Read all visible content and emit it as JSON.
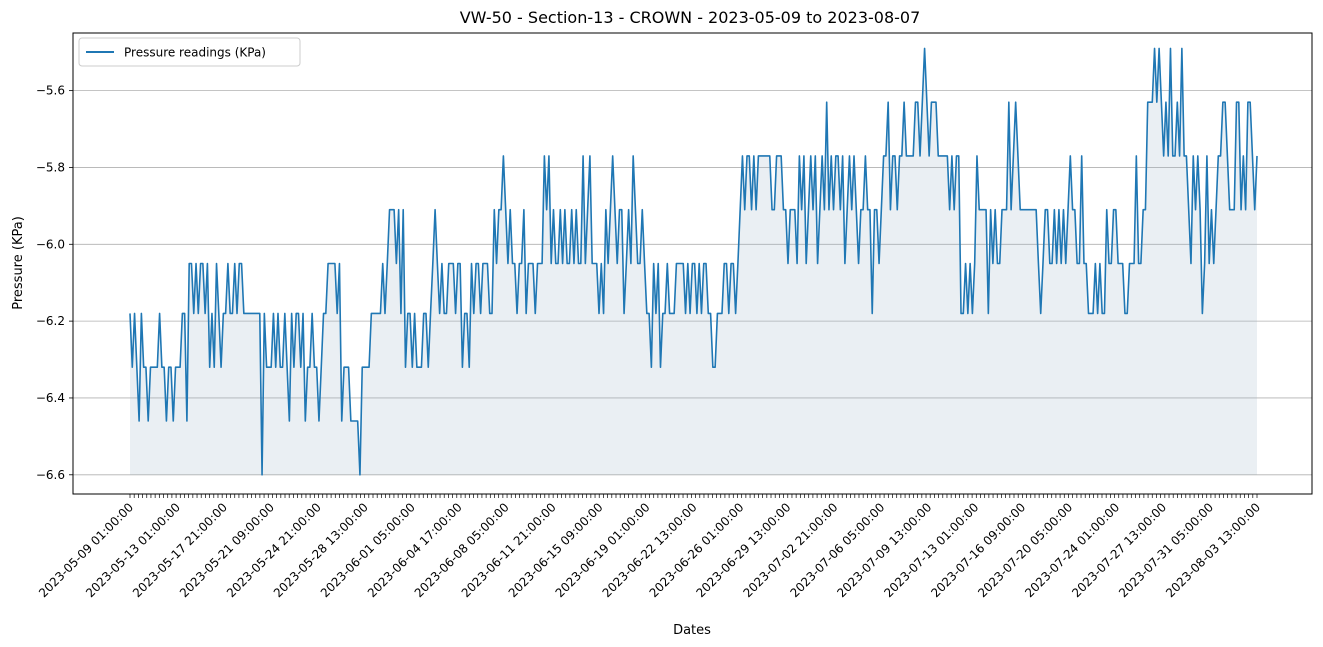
{
  "chart_data": {
    "type": "line",
    "title": "VW-50 - Section-13 - CROWN - 2023-05-09 to 2023-08-07",
    "xlabel": "Dates",
    "ylabel": "Pressure (KPa)",
    "ylim": [
      -6.65,
      -5.45
    ],
    "yticks": [
      -6.6,
      -6.4,
      -6.2,
      -6.0,
      -5.8,
      -5.6
    ],
    "ytick_labels": [
      "−6.6",
      "−6.4",
      "−6.2",
      "−6.0",
      "−5.8",
      "−5.6"
    ],
    "grid": "y",
    "legend": "top-left",
    "fill_baseline": -6.6,
    "colors": {
      "line": "#1f77b4",
      "fill": "#9fb8c8",
      "grid": "#b0b0b0"
    },
    "xtick_labels": [
      "2023-05-09 01:00:00",
      "2023-05-13 01:00:00",
      "2023-05-17 21:00:00",
      "2023-05-21 09:00:00",
      "2023-05-24 21:00:00",
      "2023-05-28 13:00:00",
      "2023-06-01 05:00:00",
      "2023-06-04 17:00:00",
      "2023-06-08 05:00:00",
      "2023-06-11 21:00:00",
      "2023-06-15 09:00:00",
      "2023-06-19 01:00:00",
      "2023-06-22 13:00:00",
      "2023-06-26 01:00:00",
      "2023-06-29 13:00:00",
      "2023-07-02 21:00:00",
      "2023-07-06 05:00:00",
      "2023-07-09 13:00:00",
      "2023-07-13 01:00:00",
      "2023-07-16 09:00:00",
      "2023-07-20 05:00:00",
      "2023-07-24 01:00:00",
      "2023-07-27 13:00:00",
      "2023-07-31 05:00:00",
      "2023-08-03 13:00:00"
    ],
    "series": [
      {
        "name": "Pressure readings (KPa)",
        "values": [
          -6.18,
          -6.32,
          -6.18,
          -6.32,
          -6.46,
          -6.18,
          -6.32,
          -6.32,
          -6.46,
          -6.32,
          -6.32,
          -6.32,
          -6.32,
          -6.18,
          -6.32,
          -6.32,
          -6.46,
          -6.32,
          -6.32,
          -6.46,
          -6.32,
          -6.32,
          -6.32,
          -6.18,
          -6.18,
          -6.46,
          -6.05,
          -6.05,
          -6.18,
          -6.05,
          -6.18,
          -6.05,
          -6.05,
          -6.18,
          -6.05,
          -6.32,
          -6.18,
          -6.32,
          -6.05,
          -6.18,
          -6.32,
          -6.18,
          -6.18,
          -6.05,
          -6.18,
          -6.18,
          -6.05,
          -6.18,
          -6.05,
          -6.05,
          -6.18,
          -6.18,
          -6.18,
          -6.18,
          -6.18,
          -6.18,
          -6.18,
          -6.18,
          -6.6,
          -6.18,
          -6.32,
          -6.32,
          -6.32,
          -6.18,
          -6.32,
          -6.18,
          -6.32,
          -6.32,
          -6.18,
          -6.32,
          -6.46,
          -6.18,
          -6.32,
          -6.18,
          -6.18,
          -6.32,
          -6.18,
          -6.46,
          -6.32,
          -6.32,
          -6.18,
          -6.32,
          -6.32,
          -6.46,
          -6.32,
          -6.18,
          -6.18,
          -6.05,
          -6.05,
          -6.05,
          -6.05,
          -6.18,
          -6.05,
          -6.46,
          -6.32,
          -6.32,
          -6.32,
          -6.46,
          -6.46,
          -6.46,
          -6.46,
          -6.6,
          -6.32,
          -6.32,
          -6.32,
          -6.32,
          -6.18,
          -6.18,
          -6.18,
          -6.18,
          -6.18,
          -6.05,
          -6.18,
          -6.05,
          -5.91,
          -5.91,
          -5.91,
          -6.05,
          -5.91,
          -6.18,
          -5.91,
          -6.32,
          -6.18,
          -6.18,
          -6.32,
          -6.18,
          -6.32,
          -6.32,
          -6.32,
          -6.18,
          -6.18,
          -6.32,
          -6.18,
          -6.05,
          -5.91,
          -6.05,
          -6.18,
          -6.05,
          -6.18,
          -6.18,
          -6.05,
          -6.05,
          -6.05,
          -6.18,
          -6.05,
          -6.05,
          -6.32,
          -6.18,
          -6.18,
          -6.32,
          -6.05,
          -6.18,
          -6.05,
          -6.05,
          -6.18,
          -6.05,
          -6.05,
          -6.05,
          -6.18,
          -6.18,
          -5.91,
          -6.05,
          -5.91,
          -5.91,
          -5.77,
          -5.91,
          -6.05,
          -5.91,
          -6.05,
          -6.05,
          -6.18,
          -6.05,
          -6.05,
          -5.91,
          -6.18,
          -6.05,
          -6.05,
          -6.05,
          -6.18,
          -6.05,
          -6.05,
          -6.05,
          -5.77,
          -5.91,
          -5.77,
          -6.05,
          -5.91,
          -6.05,
          -6.05,
          -5.91,
          -6.05,
          -5.91,
          -6.05,
          -6.05,
          -5.91,
          -6.05,
          -5.91,
          -6.05,
          -6.05,
          -5.77,
          -6.05,
          -5.91,
          -5.77,
          -6.05,
          -6.05,
          -6.05,
          -6.18,
          -6.05,
          -6.18,
          -5.91,
          -6.05,
          -5.91,
          -5.77,
          -5.91,
          -6.05,
          -5.91,
          -5.91,
          -6.18,
          -6.05,
          -5.91,
          -6.05,
          -5.77,
          -5.91,
          -6.05,
          -6.05,
          -5.91,
          -6.05,
          -6.18,
          -6.18,
          -6.32,
          -6.05,
          -6.18,
          -6.05,
          -6.32,
          -6.18,
          -6.18,
          -6.05,
          -6.18,
          -6.18,
          -6.18,
          -6.05,
          -6.05,
          -6.05,
          -6.05,
          -6.18,
          -6.05,
          -6.18,
          -6.05,
          -6.05,
          -6.18,
          -6.05,
          -6.18,
          -6.05,
          -6.05,
          -6.18,
          -6.18,
          -6.32,
          -6.32,
          -6.18,
          -6.18,
          -6.18,
          -6.05,
          -6.05,
          -6.18,
          -6.05,
          -6.05,
          -6.18,
          -6.05,
          -5.91,
          -5.77,
          -5.91,
          -5.77,
          -5.77,
          -5.91,
          -5.77,
          -5.91,
          -5.77,
          -5.77,
          -5.77,
          -5.77,
          -5.77,
          -5.77,
          -5.91,
          -5.91,
          -5.77,
          -5.77,
          -5.77,
          -5.91,
          -5.91,
          -6.05,
          -5.91,
          -5.91,
          -5.91,
          -6.05,
          -5.77,
          -5.91,
          -5.77,
          -6.05,
          -5.91,
          -5.77,
          -5.91,
          -5.77,
          -6.05,
          -5.91,
          -5.77,
          -5.91,
          -5.63,
          -5.91,
          -5.77,
          -5.91,
          -5.77,
          -5.77,
          -5.91,
          -5.77,
          -6.05,
          -5.91,
          -5.77,
          -5.91,
          -5.77,
          -5.91,
          -6.05,
          -5.91,
          -5.91,
          -5.77,
          -5.91,
          -5.91,
          -6.18,
          -5.91,
          -5.91,
          -6.05,
          -5.91,
          -5.77,
          -5.77,
          -5.63,
          -5.91,
          -5.77,
          -5.77,
          -5.91,
          -5.77,
          -5.77,
          -5.63,
          -5.77,
          -5.77,
          -5.77,
          -5.77,
          -5.63,
          -5.63,
          -5.77,
          -5.63,
          -5.49,
          -5.63,
          -5.77,
          -5.63,
          -5.63,
          -5.63,
          -5.77,
          -5.77,
          -5.77,
          -5.77,
          -5.77,
          -5.91,
          -5.77,
          -5.91,
          -5.77,
          -5.77,
          -6.18,
          -6.18,
          -6.05,
          -6.18,
          -6.05,
          -6.18,
          -6.05,
          -5.77,
          -5.91,
          -5.91,
          -5.91,
          -5.91,
          -6.18,
          -5.91,
          -6.05,
          -5.91,
          -6.05,
          -6.05,
          -5.91,
          -5.91,
          -5.91,
          -5.63,
          -5.91,
          -5.77,
          -5.63,
          -5.77,
          -5.91,
          -5.91,
          -5.91,
          -5.91,
          -5.91,
          -5.91,
          -5.91,
          -5.91,
          -6.05,
          -6.18,
          -6.05,
          -5.91,
          -5.91,
          -6.05,
          -6.05,
          -5.91,
          -6.05,
          -5.91,
          -6.05,
          -5.91,
          -6.05,
          -5.91,
          -5.77,
          -5.91,
          -5.91,
          -6.05,
          -6.05,
          -5.77,
          -6.05,
          -6.05,
          -6.18,
          -6.18,
          -6.18,
          -6.05,
          -6.18,
          -6.05,
          -6.18,
          -6.18,
          -5.91,
          -6.05,
          -6.05,
          -5.91,
          -5.91,
          -6.05,
          -6.05,
          -6.05,
          -6.18,
          -6.18,
          -6.05,
          -6.05,
          -6.05,
          -5.77,
          -6.05,
          -6.05,
          -5.91,
          -5.91,
          -5.63,
          -5.63,
          -5.63,
          -5.49,
          -5.63,
          -5.49,
          -5.63,
          -5.77,
          -5.63,
          -5.77,
          -5.49,
          -5.77,
          -5.77,
          -5.63,
          -5.77,
          -5.49,
          -5.77,
          -5.77,
          -5.91,
          -6.05,
          -5.77,
          -5.91,
          -5.77,
          -5.91,
          -6.18,
          -6.05,
          -5.77,
          -6.05,
          -5.91,
          -6.05,
          -5.91,
          -5.77,
          -5.77,
          -5.63,
          -5.63,
          -5.77,
          -5.91,
          -5.91,
          -5.91,
          -5.63,
          -5.63,
          -5.91,
          -5.77,
          -5.91,
          -5.63,
          -5.63,
          -5.77,
          -5.91,
          -5.77
        ]
      }
    ]
  }
}
